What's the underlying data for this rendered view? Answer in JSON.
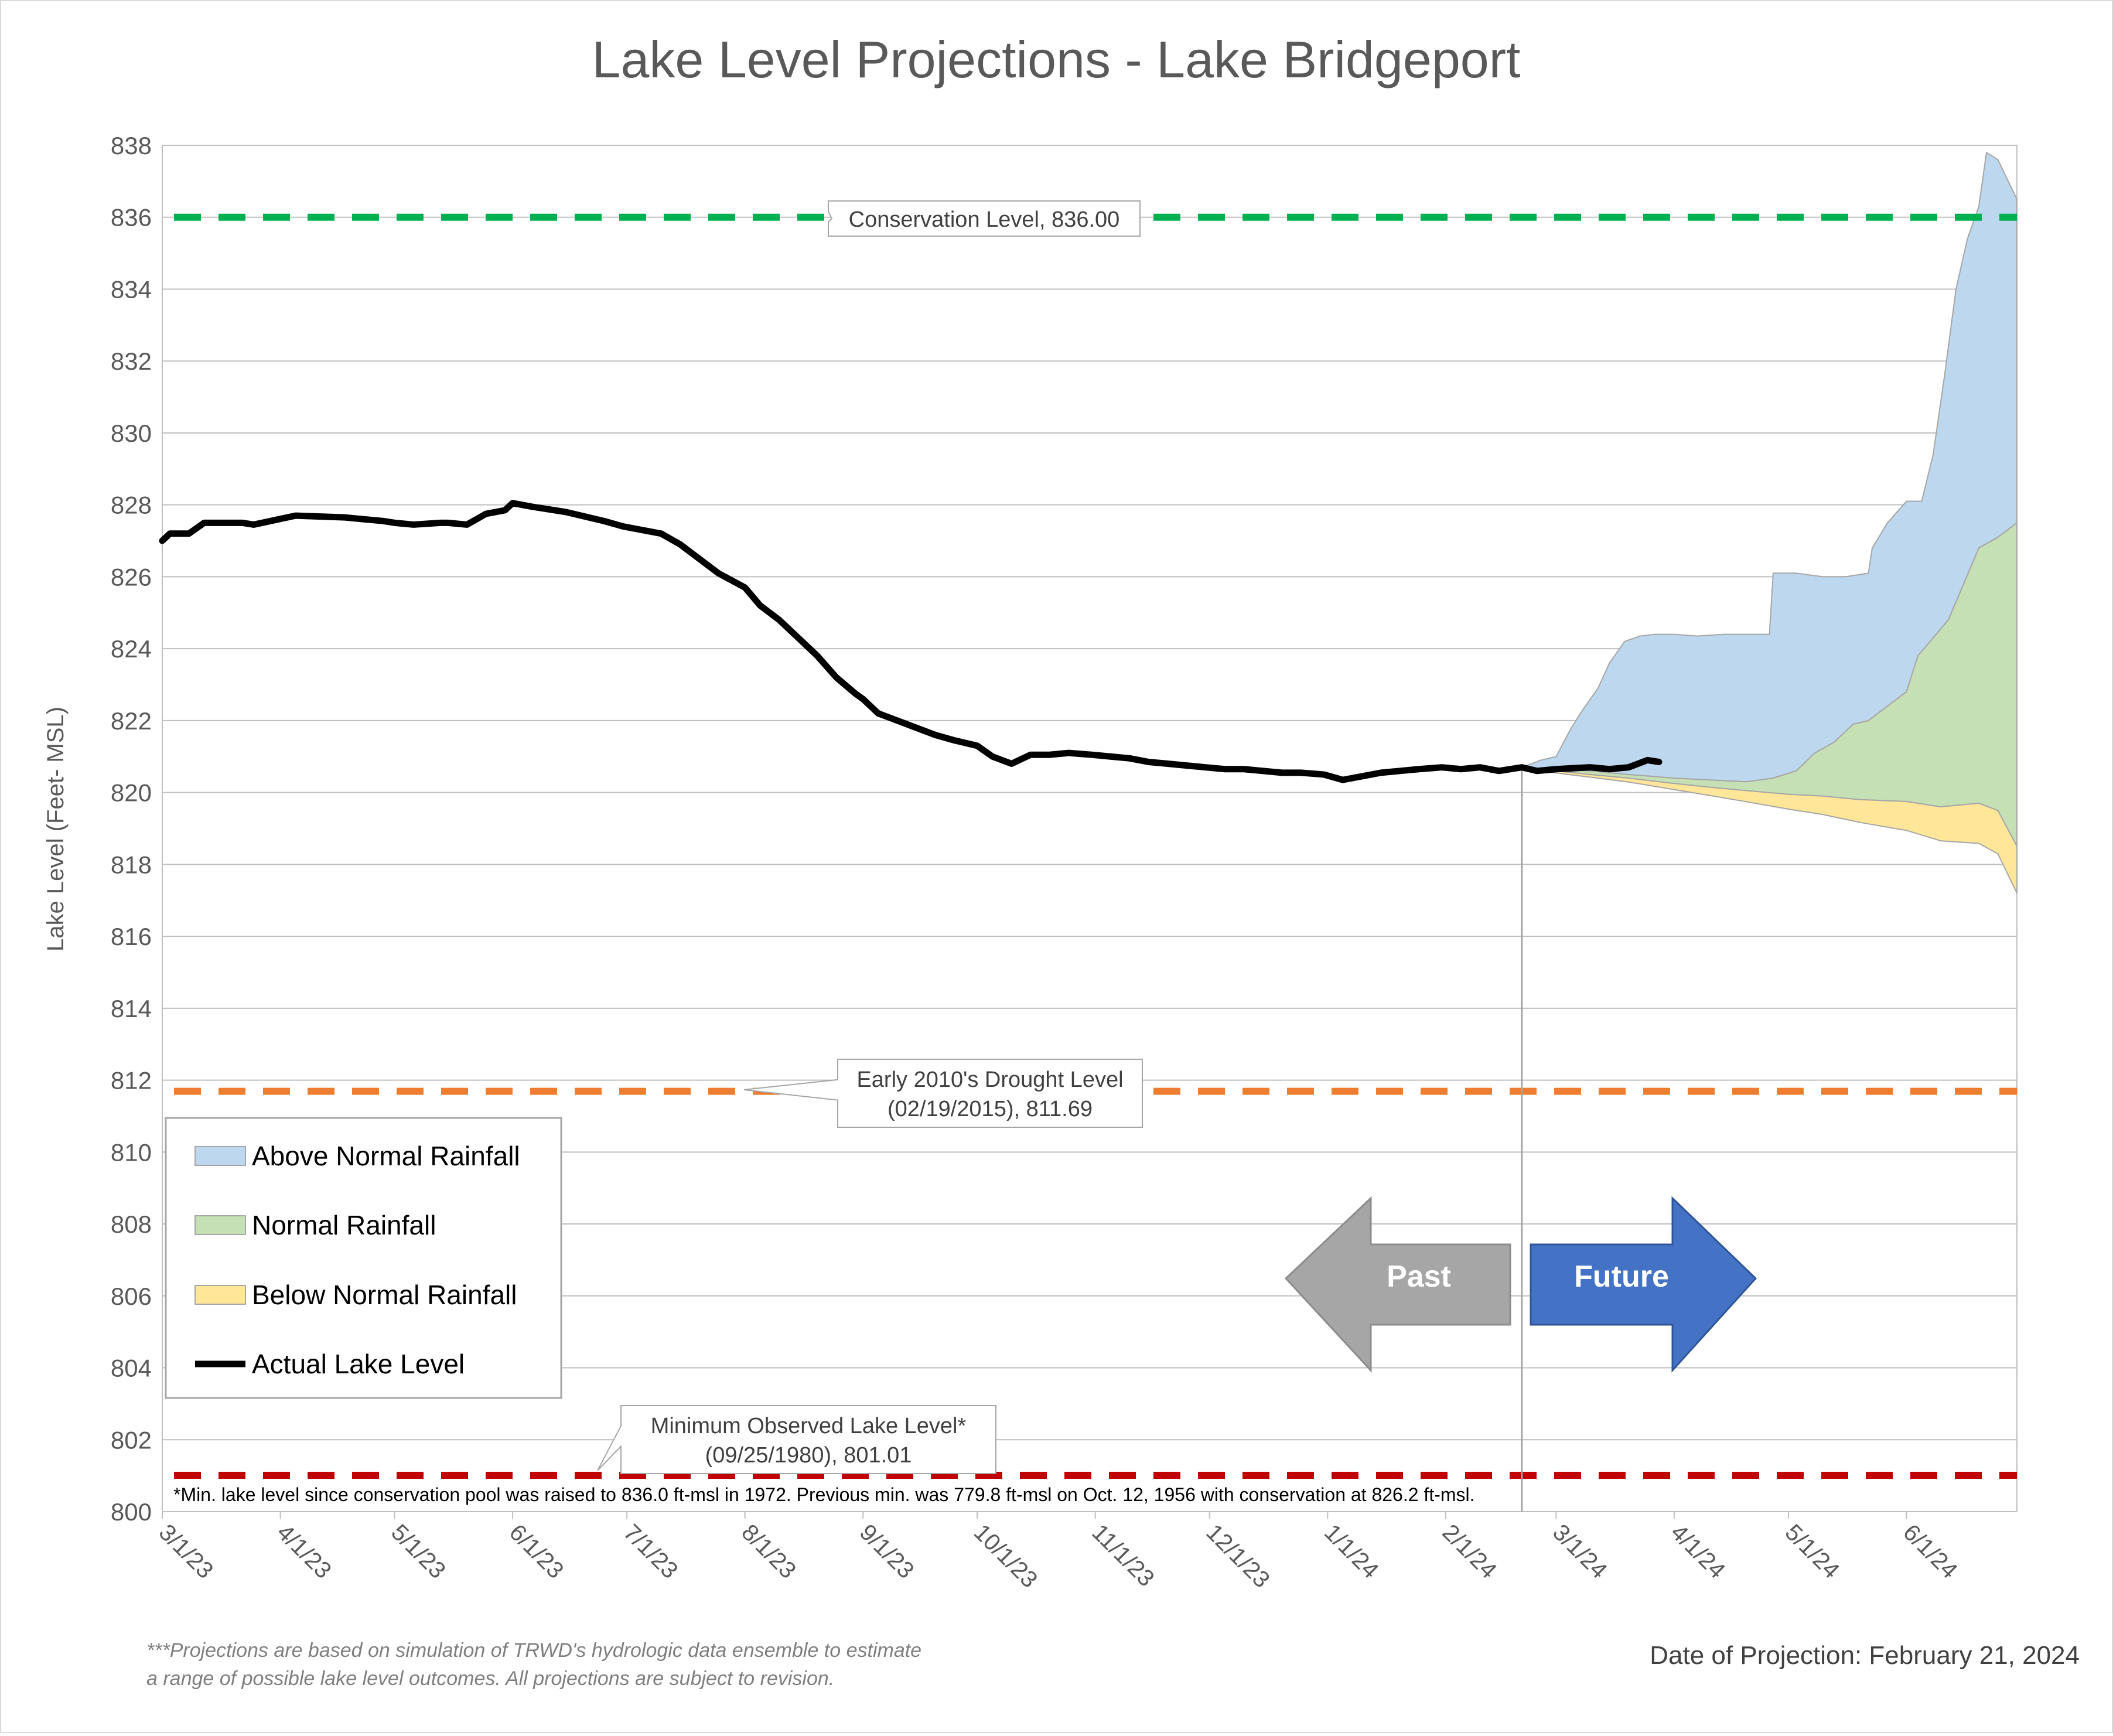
{
  "chart_data": {
    "type": "area",
    "title": "Lake Level Projections - Lake Bridgeport",
    "xlabel": "",
    "ylabel": "Lake Level (Feet- MSL)",
    "ylim": [
      800,
      838
    ],
    "yticks": [
      800,
      802,
      804,
      806,
      808,
      810,
      812,
      814,
      816,
      818,
      820,
      822,
      824,
      826,
      828,
      830,
      832,
      834,
      836,
      838
    ],
    "xlim": [
      "2023-03-01",
      "2024-06-30"
    ],
    "xticks": [
      {
        "date": "2023-03-01",
        "label": "3/1/23"
      },
      {
        "date": "2023-04-01",
        "label": "4/1/23"
      },
      {
        "date": "2023-05-01",
        "label": "5/1/23"
      },
      {
        "date": "2023-06-01",
        "label": "6/1/23"
      },
      {
        "date": "2023-07-01",
        "label": "7/1/23"
      },
      {
        "date": "2023-08-01",
        "label": "8/1/23"
      },
      {
        "date": "2023-09-01",
        "label": "9/1/23"
      },
      {
        "date": "2023-10-01",
        "label": "10/1/23"
      },
      {
        "date": "2023-11-01",
        "label": "11/1/23"
      },
      {
        "date": "2023-12-01",
        "label": "12/1/23"
      },
      {
        "date": "2024-01-01",
        "label": "1/1/24"
      },
      {
        "date": "2024-02-01",
        "label": "2/1/24"
      },
      {
        "date": "2024-03-01",
        "label": "3/1/24"
      },
      {
        "date": "2024-04-01",
        "label": "4/1/24"
      },
      {
        "date": "2024-05-01",
        "label": "5/1/24"
      },
      {
        "date": "2024-06-01",
        "label": "6/1/24"
      }
    ],
    "grid": true,
    "legend_position": "left",
    "projection_date_marker": "2024-02-21",
    "reference_lines": [
      {
        "key": "conservation",
        "label": "Conservation Level, 836.00",
        "value": 836.0,
        "color": "#00b050"
      },
      {
        "key": "drought",
        "label_lines": [
          "Early 2010's Drought Level",
          "(02/19/2015), 811.69"
        ],
        "value": 811.69,
        "color": "#ed7d31"
      },
      {
        "key": "minimum",
        "label_lines": [
          "Minimum Observed Lake Level*",
          "(09/25/1980), 801.01"
        ],
        "value": 801.01,
        "color": "#c00000"
      }
    ],
    "series": [
      {
        "name": "Above Normal Rainfall",
        "color": "#bdd7ee",
        "x": [
          "2024-02-21",
          "2024-02-26",
          "2024-03-01",
          "2024-03-05",
          "2024-03-08",
          "2024-03-12",
          "2024-03-15",
          "2024-03-19",
          "2024-03-23",
          "2024-03-27",
          "2024-04-01",
          "2024-04-07",
          "2024-04-14",
          "2024-04-20",
          "2024-04-26",
          "2024-04-27",
          "2024-05-03",
          "2024-05-10",
          "2024-05-16",
          "2024-05-22",
          "2024-05-23",
          "2024-05-27",
          "2024-06-01",
          "2024-06-05",
          "2024-06-08",
          "2024-06-11",
          "2024-06-14",
          "2024-06-17",
          "2024-06-20",
          "2024-06-22",
          "2024-06-25",
          "2024-06-30"
        ],
        "values": [
          820.7,
          820.9,
          821.0,
          821.8,
          822.3,
          822.9,
          823.6,
          824.2,
          824.35,
          824.4,
          824.4,
          824.35,
          824.4,
          824.4,
          824.4,
          826.1,
          826.1,
          826.0,
          826.0,
          826.1,
          826.8,
          827.5,
          828.1,
          828.1,
          829.4,
          831.6,
          834.0,
          835.4,
          836.3,
          837.8,
          837.6,
          836.5
        ]
      },
      {
        "name": "Normal Rainfall",
        "color": "#c5e0b4",
        "x": [
          "2024-02-21",
          "2024-03-01",
          "2024-03-10",
          "2024-03-20",
          "2024-04-01",
          "2024-04-10",
          "2024-04-20",
          "2024-04-27",
          "2024-05-03",
          "2024-05-08",
          "2024-05-13",
          "2024-05-18",
          "2024-05-22",
          "2024-05-27",
          "2024-06-01",
          "2024-06-04",
          "2024-06-08",
          "2024-06-12",
          "2024-06-16",
          "2024-06-20",
          "2024-06-25",
          "2024-06-30"
        ],
        "values": [
          820.7,
          820.65,
          820.6,
          820.5,
          820.4,
          820.35,
          820.3,
          820.4,
          820.6,
          821.1,
          821.4,
          821.9,
          822.0,
          822.4,
          822.8,
          823.8,
          824.3,
          824.8,
          825.8,
          826.8,
          827.1,
          827.5
        ]
      },
      {
        "name": "Below Normal Rainfall",
        "color": "#ffe699",
        "x": [
          "2024-02-21",
          "2024-03-01",
          "2024-03-10",
          "2024-03-20",
          "2024-04-01",
          "2024-04-10",
          "2024-04-20",
          "2024-05-01",
          "2024-05-10",
          "2024-05-20",
          "2024-06-01",
          "2024-06-10",
          "2024-06-20",
          "2024-06-25",
          "2024-06-30"
        ],
        "values": [
          820.7,
          820.6,
          820.5,
          820.4,
          820.25,
          820.15,
          820.05,
          819.95,
          819.9,
          819.8,
          819.75,
          819.6,
          819.7,
          819.5,
          818.5
        ]
      },
      {
        "name": "Actual Lake Level",
        "color": "#000000",
        "x": [
          "2023-03-01",
          "2023-03-03",
          "2023-03-08",
          "2023-03-12",
          "2023-03-22",
          "2023-03-25",
          "2023-04-05",
          "2023-04-18",
          "2023-04-28",
          "2023-05-01",
          "2023-05-06",
          "2023-05-13",
          "2023-05-15",
          "2023-05-20",
          "2023-05-25",
          "2023-05-30",
          "2023-06-01",
          "2023-06-06",
          "2023-06-15",
          "2023-06-25",
          "2023-06-30",
          "2023-07-05",
          "2023-07-10",
          "2023-07-15",
          "2023-07-20",
          "2023-07-25",
          "2023-08-01",
          "2023-08-05",
          "2023-08-10",
          "2023-08-15",
          "2023-08-20",
          "2023-08-25",
          "2023-08-30",
          "2023-09-01",
          "2023-09-05",
          "2023-09-10",
          "2023-09-15",
          "2023-09-20",
          "2023-09-25",
          "2023-10-01",
          "2023-10-05",
          "2023-10-10",
          "2023-10-15",
          "2023-10-20",
          "2023-10-25",
          "2023-10-31",
          "2023-11-05",
          "2023-11-10",
          "2023-11-15",
          "2023-11-20",
          "2023-11-25",
          "2023-11-30",
          "2023-12-05",
          "2023-12-10",
          "2023-12-15",
          "2023-12-20",
          "2023-12-25",
          "2023-12-31",
          "2024-01-05",
          "2024-01-10",
          "2024-01-15",
          "2024-01-20",
          "2024-01-25",
          "2024-01-31",
          "2024-02-05",
          "2024-02-10",
          "2024-02-15",
          "2024-02-21",
          "2024-02-25",
          "2024-03-01",
          "2024-03-10",
          "2024-03-15",
          "2024-03-20",
          "2024-03-25",
          "2024-03-28"
        ],
        "values": [
          827.0,
          827.2,
          827.2,
          827.5,
          827.5,
          827.45,
          827.7,
          827.65,
          827.55,
          827.5,
          827.45,
          827.5,
          827.5,
          827.45,
          827.75,
          827.85,
          828.05,
          827.95,
          827.8,
          827.55,
          827.4,
          827.3,
          827.2,
          826.9,
          826.5,
          826.1,
          825.7,
          825.2,
          824.8,
          824.3,
          823.8,
          823.2,
          822.75,
          822.6,
          822.2,
          822.0,
          821.8,
          821.6,
          821.45,
          821.3,
          821.0,
          820.8,
          821.05,
          821.05,
          821.1,
          821.05,
          821.0,
          820.95,
          820.85,
          820.8,
          820.75,
          820.7,
          820.65,
          820.65,
          820.6,
          820.55,
          820.55,
          820.5,
          820.35,
          820.45,
          820.55,
          820.6,
          820.65,
          820.7,
          820.65,
          820.7,
          820.6,
          820.7,
          820.6,
          820.65,
          820.7,
          820.65,
          820.7,
          820.9,
          820.85
        ]
      }
    ],
    "annotations": {
      "past_label": "Past",
      "future_label": "Future",
      "footnote": "*Min. lake level since conservation pool was raised to 836.0 ft-msl in 1972.  Previous min. was 779.8 ft-msl on Oct. 12, 1956 with conservation at 826.2 ft-msl.",
      "disclaimer_lines": [
        "***Projections are based on simulation of TRWD's hydrologic data ensemble to estimate",
        "a range of possible lake level outcomes.  All projections are subject to revision."
      ],
      "projection_date": "Date of Projection: February 21, 2024"
    }
  }
}
